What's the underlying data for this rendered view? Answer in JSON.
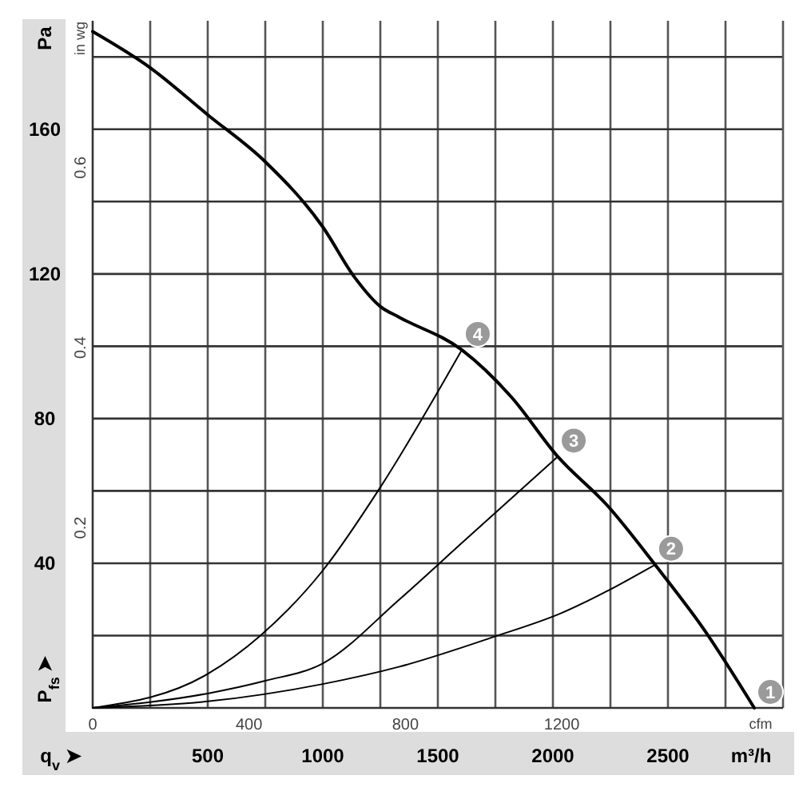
{
  "chart_data": {
    "type": "line",
    "xlabel": "m³/h",
    "ylabel": "Pa",
    "y2label": "in wg",
    "x2label": "cfm",
    "xlim": [
      0,
      3000
    ],
    "ylim": [
      0,
      190
    ],
    "y2lim": [
      0,
      0.763
    ],
    "x2lim": [
      0,
      1766
    ],
    "xticks": [
      {
        "value": 250,
        "label": null
      },
      500,
      {
        "value": 750,
        "label": null
      },
      1000,
      {
        "value": 1250,
        "label": null
      },
      1500,
      {
        "value": 1750,
        "label": null
      },
      2000,
      {
        "value": 2250,
        "label": null
      },
      2500,
      {
        "value": 2750,
        "label": null
      }
    ],
    "yticks": [
      {
        "value": 20,
        "label": null
      },
      40,
      {
        "value": 60,
        "label": null
      },
      80,
      {
        "value": 100,
        "label": null
      },
      120,
      {
        "value": 140,
        "label": null
      },
      160,
      {
        "value": 180,
        "label": null
      }
    ],
    "y2ticks": [
      0.2,
      0.4,
      0.6
    ],
    "x2ticks": [
      0,
      400,
      800,
      1200
    ],
    "grid": true,
    "line_style": "solid",
    "marker": "none",
    "series": [
      {
        "color": "#000000",
        "x": [
          0,
          250,
          500,
          750,
          1000,
          1139,
          1250,
          1333,
          1604,
          1819,
          2021,
          2236,
          2444,
          2653,
          2875
        ],
        "values": [
          187,
          177,
          164,
          151,
          133,
          119,
          111,
          108,
          99,
          86,
          69.5,
          56,
          39.6,
          22,
          0
        ]
      },
      {
        "color": "#000000",
        "x": [
          0,
          500,
          729,
          1000,
          1250,
          1604
        ],
        "values": [
          0,
          9.4,
          20,
          38,
          61,
          99
        ]
      },
      {
        "color": "#000000",
        "x": [
          0,
          500,
          750,
          1000,
          1333,
          1611,
          2021
        ],
        "values": [
          0,
          4,
          7.5,
          12.3,
          30,
          46,
          69.5
        ]
      },
      {
        "color": "#000000",
        "x": [
          0,
          500,
          1000,
          1333,
          1750,
          2028,
          2444
        ],
        "values": [
          0,
          1.8,
          6.6,
          11.4,
          19.8,
          26,
          39.6
        ]
      }
    ],
    "annotations": [
      {
        "text": "1",
        "x": 2875,
        "y": 0
      },
      {
        "text": "2",
        "x": 2444,
        "y": 39.6
      },
      {
        "text": "3",
        "x": 2021,
        "y": 69.5
      },
      {
        "text": "4",
        "x": 1604,
        "y": 99
      },
      "q$_{v}$ ➤",
      "P$_{fs}$ ➤"
    ]
  }
}
